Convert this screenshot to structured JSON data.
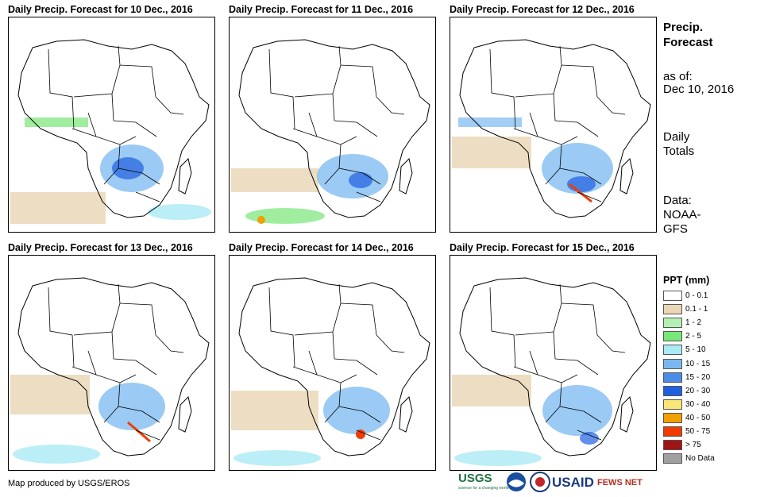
{
  "panels": [
    {
      "title": "Daily Precip. Forecast for 10 Dec., 2016"
    },
    {
      "title": "Daily Precip. Forecast for 11 Dec., 2016"
    },
    {
      "title": "Daily Precip. Forecast for 12 Dec., 2016"
    },
    {
      "title": "Daily Precip. Forecast for 13 Dec., 2016"
    },
    {
      "title": "Daily Precip. Forecast for 14 Dec., 2016"
    },
    {
      "title": "Daily Precip. Forecast for 15 Dec., 2016"
    }
  ],
  "sidebar": {
    "title_line1": "Precip.",
    "title_line2": "Forecast",
    "asof_label": "as of:",
    "asof_date": "Dec 10, 2016",
    "totals_line1": "Daily",
    "totals_line2": "Totals",
    "source_line1": "Data:",
    "source_line2": "NOAA-",
    "source_line3": "GFS"
  },
  "legend": {
    "title": "PPT (mm)",
    "items": [
      {
        "label": "0 - 0.1",
        "color": "#ffffff"
      },
      {
        "label": "0.1 - 1",
        "color": "#e8d6b4"
      },
      {
        "label": "1 - 2",
        "color": "#b4f0b4"
      },
      {
        "label": "2 - 5",
        "color": "#78e678"
      },
      {
        "label": "5 - 10",
        "color": "#aaeaf4"
      },
      {
        "label": "10 - 15",
        "color": "#7ab8f0"
      },
      {
        "label": "15 - 20",
        "color": "#4a8ce8"
      },
      {
        "label": "20 - 30",
        "color": "#2060e0"
      },
      {
        "label": "30 - 40",
        "color": "#fae678"
      },
      {
        "label": "40 - 50",
        "color": "#f0a000"
      },
      {
        "label": "50 - 75",
        "color": "#f03c00"
      },
      {
        "label": "> 75",
        "color": "#a01414"
      },
      {
        "label": "No Data",
        "color": "#a0a0a0"
      }
    ]
  },
  "footer": {
    "credit": "Map produced by USGS/EROS",
    "logo_usgs": "USGS",
    "logo_usgs_tagline": "science for a changing world",
    "logo_usaid": "USAID",
    "logo_fews": "FEWS NET"
  }
}
